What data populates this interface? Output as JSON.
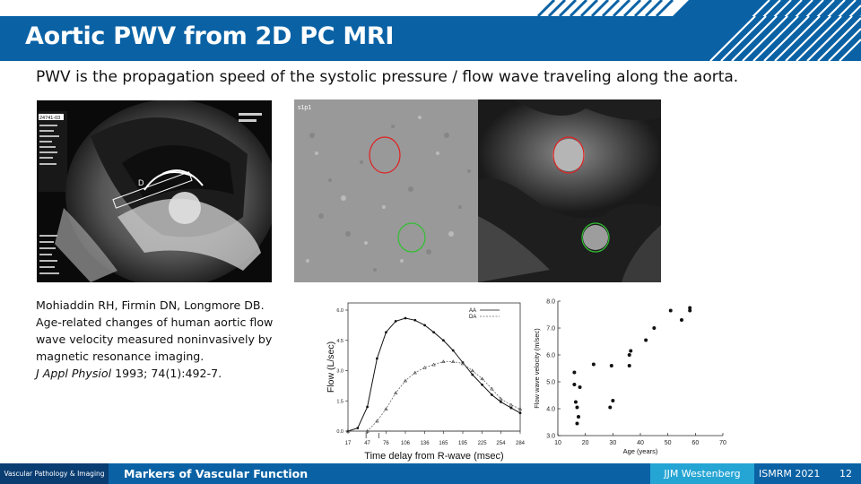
{
  "slide": {
    "title": "Aortic PWV from 2D PC MRI",
    "intro": "PWV is the propagation speed of the systolic pressure  / flow wave traveling along the aorta."
  },
  "images": {
    "mri_sagittal": {
      "scanner_id": "24741-03"
    },
    "phase_contrast": {
      "label": "s1p1"
    }
  },
  "citation": {
    "authors": "Mohiaddin RH, Firmin DN, Longmore DB.",
    "title": "Age-related changes of human aortic flow wave velocity measured noninvasively by magnetic resonance imaging.",
    "journal": "J Appl Physiol",
    "details": " 1993; 74(1):492-7."
  },
  "chart_data": [
    {
      "type": "line",
      "xlabel": "Time delay from R-wave (msec)",
      "ylabel": "Flow (L/sec)",
      "x_ticks": [
        "17",
        "47",
        "76",
        "106",
        "136",
        "165",
        "195",
        "225",
        "254",
        "284"
      ],
      "y_ticks": [
        "0.0",
        "1.5",
        "3.0",
        "4.5",
        "6.0"
      ],
      "ylim": [
        0,
        6.0
      ],
      "xlim": [
        17,
        284
      ],
      "legend_position": "top-right",
      "series": [
        {
          "name": "AA",
          "x": [
            17,
            32,
            47,
            62,
            76,
            91,
            106,
            121,
            136,
            150,
            165,
            180,
            195,
            210,
            225,
            240,
            254,
            270,
            284
          ],
          "values": [
            0.0,
            0.15,
            1.2,
            3.6,
            4.9,
            5.45,
            5.6,
            5.5,
            5.25,
            4.9,
            4.5,
            4.0,
            3.4,
            2.8,
            2.3,
            1.8,
            1.45,
            1.15,
            0.9
          ]
        },
        {
          "name": "DA",
          "x": [
            17,
            47,
            62,
            76,
            91,
            106,
            121,
            136,
            150,
            165,
            180,
            195,
            210,
            225,
            240,
            254,
            270,
            284
          ],
          "values": [
            0.0,
            0.0,
            0.5,
            1.1,
            1.9,
            2.5,
            2.9,
            3.15,
            3.3,
            3.45,
            3.45,
            3.35,
            3.0,
            2.6,
            2.1,
            1.6,
            1.3,
            1.1
          ]
        }
      ]
    },
    {
      "type": "scatter",
      "xlabel": "Age (years)",
      "ylabel": "Flow wave velocity (m/sec)",
      "x_ticks": [
        "10",
        "20",
        "30",
        "40",
        "50",
        "60",
        "70"
      ],
      "y_ticks": [
        "3.0",
        "4.0",
        "5.0",
        "6.0",
        "7.0",
        "8.0"
      ],
      "xlim": [
        10,
        70
      ],
      "ylim": [
        3.0,
        8.0
      ],
      "x": [
        16,
        16,
        16.5,
        17,
        17,
        17.5,
        18,
        23,
        29,
        29.5,
        30,
        36,
        36,
        36.5,
        42,
        45,
        51,
        55,
        58,
        58
      ],
      "y": [
        5.35,
        4.9,
        4.25,
        4.05,
        3.45,
        3.7,
        4.8,
        5.65,
        4.05,
        5.6,
        4.3,
        5.6,
        6.0,
        6.15,
        6.55,
        7.0,
        7.65,
        7.3,
        7.65,
        7.75
      ]
    }
  ],
  "footer": {
    "department": "Vascular Pathology & Imaging",
    "course": "Markers of Vascular Function",
    "author": "JJM Westenberg",
    "conference": "ISMRM 2021",
    "page": "12"
  },
  "colors": {
    "brand_blue": "#0a62a5",
    "dark_blue": "#0a3d72",
    "light_blue": "#25a5d4",
    "roi_red": "#e02020",
    "roi_green": "#30c030"
  }
}
